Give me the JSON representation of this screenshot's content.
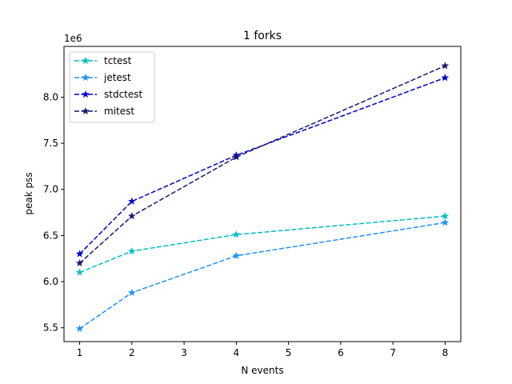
{
  "chart_data": {
    "type": "line",
    "title": "1 forks",
    "xlabel": "N events",
    "ylabel": "peak pss",
    "y_offset_text": "1e6",
    "xlim": [
      0.7,
      8.3
    ],
    "ylim": [
      5350000,
      8550000
    ],
    "x_ticks": [
      1,
      2,
      3,
      4,
      5,
      6,
      7,
      8
    ],
    "y_ticks": [
      5500000,
      6000000,
      6500000,
      7000000,
      7500000,
      8000000
    ],
    "y_tick_labels": [
      "5.5",
      "6.0",
      "6.5",
      "7.0",
      "7.5",
      "8.0"
    ],
    "grid": false,
    "legend_position": "upper-left",
    "x": [
      1,
      2,
      4,
      8
    ],
    "series": [
      {
        "name": "tctest",
        "color": "#00bfbf",
        "marker": "star",
        "linestyle": "dashed",
        "values": [
          6100000,
          6330000,
          6510000,
          6710000
        ]
      },
      {
        "name": "jetest",
        "color": "#1e90ff",
        "marker": "star",
        "linestyle": "dashed",
        "values": [
          5490000,
          5880000,
          6280000,
          6640000
        ]
      },
      {
        "name": "stdctest",
        "color": "#0000cd",
        "marker": "star",
        "linestyle": "dashed",
        "values": [
          6300000,
          6870000,
          7370000,
          8210000
        ]
      },
      {
        "name": "mitest",
        "color": "#191970",
        "marker": "star",
        "linestyle": "dashed",
        "values": [
          6200000,
          6710000,
          7350000,
          8340000
        ]
      }
    ]
  }
}
